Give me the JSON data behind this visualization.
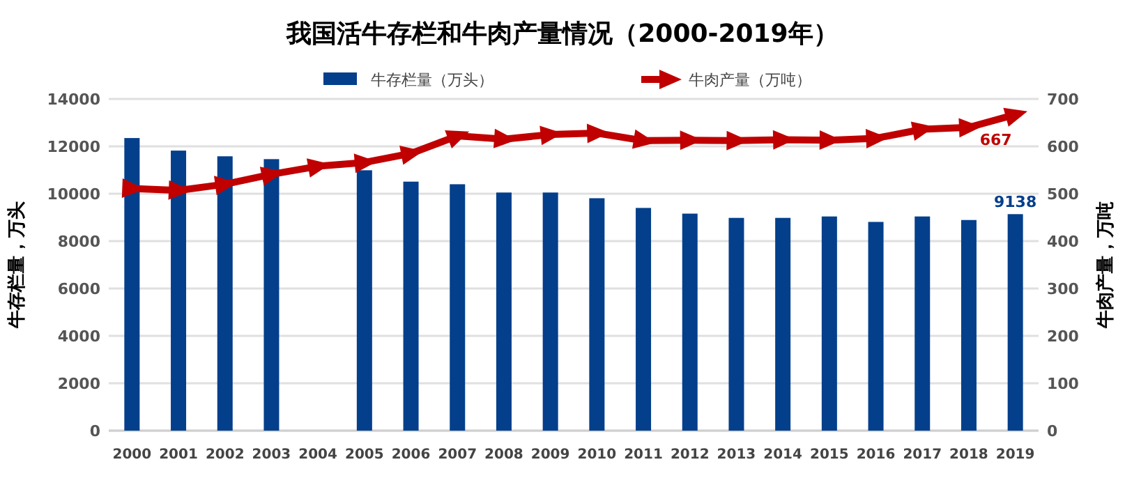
{
  "chart_data": {
    "type": "bar",
    "title": "我国活牛存栏和牛肉产量情况（2000-2019年）",
    "ylabel": "牛存栏量，万头",
    "y2label": "牛肉产量，万吨",
    "categories": [
      "2000",
      "2001",
      "2002",
      "2003",
      "2004",
      "2005",
      "2006",
      "2007",
      "2008",
      "2009",
      "2010",
      "2011",
      "2012",
      "2013",
      "2014",
      "2015",
      "2016",
      "2017",
      "2018",
      "2019"
    ],
    "series": [
      {
        "name": "牛存栏量（万头）",
        "color": "#043f8c",
        "values": [
          12350,
          11820,
          11580,
          11460,
          null,
          10990,
          10510,
          10400,
          10050,
          10050,
          9810,
          9400,
          9160,
          8980,
          8980,
          9040,
          8810,
          9040,
          8890,
          9138
        ],
        "value_labels": [
          null,
          null,
          null,
          null,
          null,
          null,
          null,
          null,
          null,
          null,
          null,
          null,
          null,
          null,
          null,
          null,
          null,
          null,
          null,
          "9138"
        ]
      },
      {
        "name": "牛肉产量（万吨）",
        "type": "line",
        "axis": "y2",
        "color": "#c00000",
        "marker": "triangle",
        "values": [
          511,
          507,
          520,
          541,
          558,
          566,
          585,
          622,
          615,
          625,
          628,
          612,
          613,
          612,
          614,
          613,
          617,
          636,
          640,
          667
        ],
        "value_labels": [
          null,
          null,
          null,
          null,
          null,
          null,
          null,
          null,
          null,
          null,
          null,
          null,
          null,
          null,
          null,
          null,
          null,
          null,
          null,
          "667"
        ]
      }
    ],
    "ylim": [
      0,
      14000
    ],
    "yticks": [
      0,
      2000,
      4000,
      6000,
      8000,
      10000,
      12000,
      14000
    ],
    "y2lim": [
      0,
      700
    ],
    "y2ticks": [
      0,
      100,
      200,
      300,
      400,
      500,
      600,
      700
    ],
    "grid": "y",
    "legend": "top"
  }
}
